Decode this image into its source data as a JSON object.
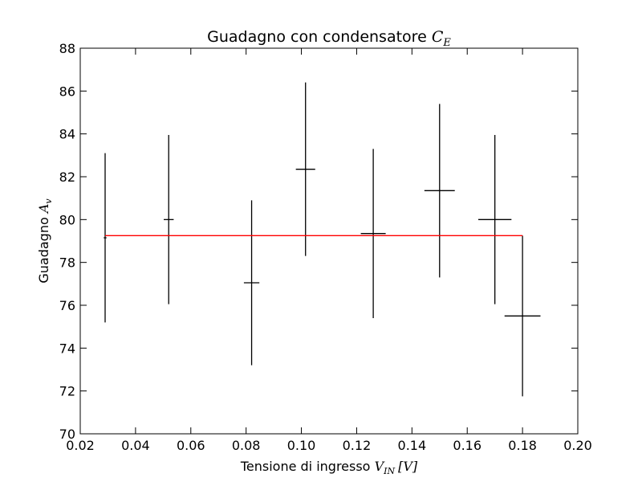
{
  "chart_data": {
    "type": "scatter",
    "title": {
      "text": "Guadagno con condensatore ",
      "math": "C",
      "math_sub": "E"
    },
    "xlabel": {
      "text": "Tensione di ingresso ",
      "math": "V",
      "math_sub": "IN",
      "unit": "[V]"
    },
    "ylabel": {
      "text": "Guadagno ",
      "math": "A",
      "math_sub": "v"
    },
    "xlim": [
      0.02,
      0.2
    ],
    "ylim": [
      70,
      88
    ],
    "xticks": [
      "0.02",
      "0.04",
      "0.06",
      "0.08",
      "0.10",
      "0.12",
      "0.14",
      "0.16",
      "0.18",
      "0.20"
    ],
    "yticks": [
      "70",
      "72",
      "74",
      "76",
      "78",
      "80",
      "82",
      "84",
      "86",
      "88"
    ],
    "grid": false,
    "series": [
      {
        "marker": "errorbar",
        "color": "#000000",
        "points": [
          {
            "x": 0.029,
            "y": 79.15,
            "xerr": 0.0005,
            "yerr": 3.95
          },
          {
            "x": 0.052,
            "y": 80.0,
            "xerr": 0.0018,
            "yerr": 3.95
          },
          {
            "x": 0.082,
            "y": 77.05,
            "xerr": 0.0028,
            "yerr": 3.85
          },
          {
            "x": 0.1015,
            "y": 82.35,
            "xerr": 0.0035,
            "yerr": 4.05
          },
          {
            "x": 0.126,
            "y": 79.35,
            "xerr": 0.0045,
            "yerr": 3.95
          },
          {
            "x": 0.15,
            "y": 81.35,
            "xerr": 0.0055,
            "yerr": 4.05
          },
          {
            "x": 0.17,
            "y": 80.0,
            "xerr": 0.006,
            "yerr": 3.95
          },
          {
            "x": 0.18,
            "y": 75.5,
            "xerr": 0.0065,
            "yerr": 3.75
          }
        ]
      },
      {
        "marker": "line",
        "color": "#ff0000",
        "x": [
          0.029,
          0.18
        ],
        "y": [
          79.25,
          79.25
        ]
      }
    ]
  }
}
